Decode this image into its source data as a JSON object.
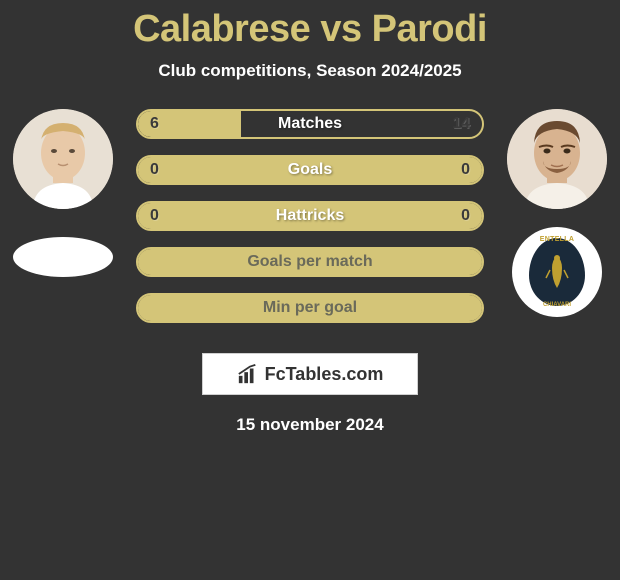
{
  "title": {
    "player1": "Calabrese",
    "vs": "vs",
    "player2": "Parodi"
  },
  "subtitle": "Club competitions, Season 2024/2025",
  "colors": {
    "accent": "#d4c578",
    "background": "#333333",
    "text_light": "#ffffff",
    "text_dark": "#3a3a3a"
  },
  "stats": [
    {
      "label": "Matches",
      "left_value": "6",
      "right_value": "14",
      "fill_left_pct": 30,
      "fill_full": false,
      "label_dark": false
    },
    {
      "label": "Goals",
      "left_value": "0",
      "right_value": "0",
      "fill_left_pct": 0,
      "fill_full": true,
      "label_dark": false
    },
    {
      "label": "Hattricks",
      "left_value": "0",
      "right_value": "0",
      "fill_left_pct": 0,
      "fill_full": true,
      "label_dark": false
    },
    {
      "label": "Goals per match",
      "left_value": "",
      "right_value": "",
      "fill_left_pct": 0,
      "fill_full": true,
      "label_dark": true
    },
    {
      "label": "Min per goal",
      "left_value": "",
      "right_value": "",
      "fill_left_pct": 0,
      "fill_full": true,
      "label_dark": true
    }
  ],
  "branding": {
    "text": "FcTables.com"
  },
  "date": "15 november 2024",
  "crest_right": {
    "top": "ENTELLA",
    "bottom": "CHIAVARI"
  }
}
